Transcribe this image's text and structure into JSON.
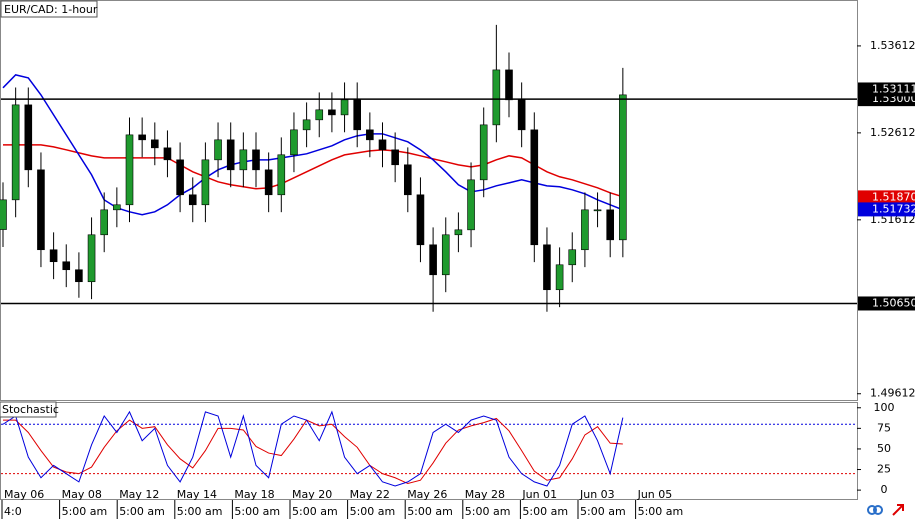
{
  "chart_data": {
    "type": "candlestick",
    "title": "EUR/CAD: 1-hour",
    "bull_color": "#1f9a2e",
    "bear_color": "#000000",
    "ylim": [
      1.4954,
      1.5414
    ],
    "yticks": [
      1.53612,
      1.52612,
      1.51612,
      1.49612
    ],
    "open": [
      1.515,
      1.51842,
      1.52934,
      1.52187,
      1.51268,
      1.5113,
      1.51038,
      1.509,
      1.5144,
      1.51727,
      1.51785,
      1.52589,
      1.52532,
      1.5244,
      1.52302,
      1.519,
      1.51785,
      1.52302,
      1.52532,
      1.52187,
      1.52417,
      1.52187,
      1.519,
      1.5236,
      1.52647,
      1.52762,
      1.52877,
      1.52819,
      1.52992,
      1.52647,
      1.52532,
      1.52417,
      1.52245,
      1.519,
      1.51325,
      1.5098,
      1.5144,
      1.51497,
      1.52072,
      1.52704,
      1.53336,
      1.52992,
      1.52647,
      1.51325,
      1.50808,
      1.51095,
      1.51268,
      1.51727,
      1.51727,
      1.51382
    ],
    "high": [
      1.52042,
      1.53134,
      1.53134,
      1.52387,
      1.51468,
      1.5133,
      1.51238,
      1.5164,
      1.51927,
      1.51985,
      1.52789,
      1.52789,
      1.52732,
      1.5264,
      1.52502,
      1.521,
      1.52502,
      1.52732,
      1.52732,
      1.52617,
      1.52617,
      1.52387,
      1.5256,
      1.52847,
      1.52962,
      1.53077,
      1.53077,
      1.53192,
      1.53192,
      1.52847,
      1.52732,
      1.52617,
      1.52445,
      1.521,
      1.51525,
      1.5164,
      1.51697,
      1.52272,
      1.52904,
      1.53854,
      1.53536,
      1.53192,
      1.52847,
      1.51525,
      1.51295,
      1.51468,
      1.51927,
      1.51927,
      1.51927,
      1.53359
    ],
    "low": [
      1.513,
      1.51642,
      1.51987,
      1.51068,
      1.5093,
      1.50838,
      1.50716,
      1.507,
      1.5124,
      1.51527,
      1.51585,
      1.52332,
      1.5224,
      1.52102,
      1.517,
      1.51585,
      1.51585,
      1.52102,
      1.51987,
      1.51987,
      1.51987,
      1.517,
      1.517,
      1.5216,
      1.52447,
      1.52562,
      1.52619,
      1.52619,
      1.52447,
      1.52332,
      1.52217,
      1.52045,
      1.517,
      1.51125,
      1.50555,
      1.5078,
      1.5124,
      1.51297,
      1.51872,
      1.52504,
      1.52792,
      1.52447,
      1.51125,
      1.50555,
      1.50608,
      1.50895,
      1.51068,
      1.51527,
      1.51182,
      1.51182
    ],
    "close": [
      1.51842,
      1.52934,
      1.52187,
      1.51268,
      1.5113,
      1.51038,
      1.509,
      1.5144,
      1.51727,
      1.51785,
      1.52589,
      1.52532,
      1.5244,
      1.52302,
      1.519,
      1.51785,
      1.52302,
      1.52532,
      1.52187,
      1.52417,
      1.52187,
      1.519,
      1.5236,
      1.52647,
      1.52762,
      1.52877,
      1.52819,
      1.52992,
      1.52647,
      1.52532,
      1.52417,
      1.52245,
      1.519,
      1.51325,
      1.5098,
      1.5144,
      1.51497,
      1.52072,
      1.52704,
      1.53336,
      1.52992,
      1.52647,
      1.51325,
      1.50808,
      1.51095,
      1.51268,
      1.51727,
      1.51727,
      1.51382,
      1.53049
    ],
    "moving_averages": [
      {
        "color": "#e00000",
        "values": [
          1.52474,
          1.52474,
          1.52474,
          1.52474,
          1.52451,
          1.52417,
          1.52382,
          1.52348,
          1.52325,
          1.52325,
          1.52325,
          1.52325,
          1.52325,
          1.52325,
          1.52244,
          1.52164,
          1.52107,
          1.52049,
          1.52015,
          1.51992,
          1.51969,
          1.5198,
          1.52026,
          1.52095,
          1.52164,
          1.52233,
          1.52302,
          1.52359,
          1.52382,
          1.52405,
          1.52417,
          1.52405,
          1.52382,
          1.52348,
          1.52313,
          1.52279,
          1.52244,
          1.52221,
          1.52244,
          1.52302,
          1.52348,
          1.52325,
          1.52244,
          1.52164,
          1.52107,
          1.52072,
          1.52026,
          1.5198,
          1.51923,
          1.51877
        ]
      },
      {
        "color": "#0000dd",
        "values": [
          1.5313,
          1.53279,
          1.53244,
          1.53049,
          1.52819,
          1.52589,
          1.52359,
          1.5213,
          1.51842,
          1.5175,
          1.51704,
          1.5167,
          1.51704,
          1.51785,
          1.519,
          1.5198,
          1.52095,
          1.52187,
          1.52244,
          1.52279,
          1.52302,
          1.52302,
          1.52325,
          1.52348,
          1.52371,
          1.52417,
          1.52463,
          1.52532,
          1.52578,
          1.52601,
          1.52601,
          1.52555,
          1.52509,
          1.52417,
          1.52302,
          1.52164,
          1.52015,
          1.51934,
          1.51957,
          1.52003,
          1.52037,
          1.52072,
          1.52037,
          1.52003,
          1.51992,
          1.51957,
          1.51911,
          1.51842,
          1.51785,
          1.51727
        ]
      }
    ],
    "levels": [
      {
        "value": 1.53,
        "label": "1.53000",
        "color": "#000000"
      },
      {
        "value": 1.5065,
        "label": "1.50650",
        "color": "#000000"
      }
    ],
    "markers": [
      {
        "value": 1.53111,
        "label": "1.53111",
        "color": "#000000"
      },
      {
        "value": 1.5187,
        "label": "1.51870",
        "color": "#e00000"
      },
      {
        "value": 1.51732,
        "label": "1.51732",
        "color": "#0000dd"
      }
    ],
    "stochastic": {
      "label": "Stochastic",
      "ylim": [
        -12,
        107
      ],
      "yticks": [
        0,
        25,
        50,
        75,
        100
      ],
      "levels": [
        {
          "value": 80,
          "color": "#0000dd"
        },
        {
          "value": 20,
          "color": "#e00000"
        }
      ],
      "series": [
        {
          "color": "#e00000",
          "values": [
            85,
            85,
            70,
            48,
            28,
            22,
            20,
            28,
            52,
            72,
            85,
            75,
            77,
            55,
            38,
            27,
            48,
            75,
            75,
            73,
            53,
            45,
            42,
            62,
            85,
            78,
            80,
            65,
            52,
            30,
            20,
            15,
            8,
            12,
            33,
            57,
            73,
            78,
            82,
            87,
            72,
            48,
            23,
            12,
            15,
            38,
            67,
            77,
            57,
            56
          ]
        },
        {
          "color": "#0000dd",
          "values": [
            80,
            90,
            40,
            15,
            30,
            20,
            10,
            55,
            90,
            70,
            95,
            60,
            75,
            30,
            10,
            40,
            95,
            90,
            40,
            90,
            30,
            15,
            80,
            90,
            85,
            60,
            95,
            40,
            20,
            30,
            10,
            5,
            10,
            20,
            70,
            80,
            70,
            85,
            90,
            85,
            40,
            20,
            10,
            5,
            30,
            80,
            90,
            60,
            20,
            88
          ]
        }
      ]
    },
    "dates": [
      "May 06",
      "May 08",
      "May 12",
      "May 14",
      "May 18",
      "May 20",
      "May 22",
      "May 26",
      "May 28",
      "Jun 01",
      "Jun 03",
      "Jun 05"
    ],
    "times": [
      "4:0",
      "5:00 am",
      "5:00 am",
      "5:00 am",
      "5:00 am",
      "5:00 am",
      "5:00 am",
      "5:00 am",
      "5:00 am",
      "5:00 am",
      "5:00 am",
      "5:00 am"
    ]
  }
}
